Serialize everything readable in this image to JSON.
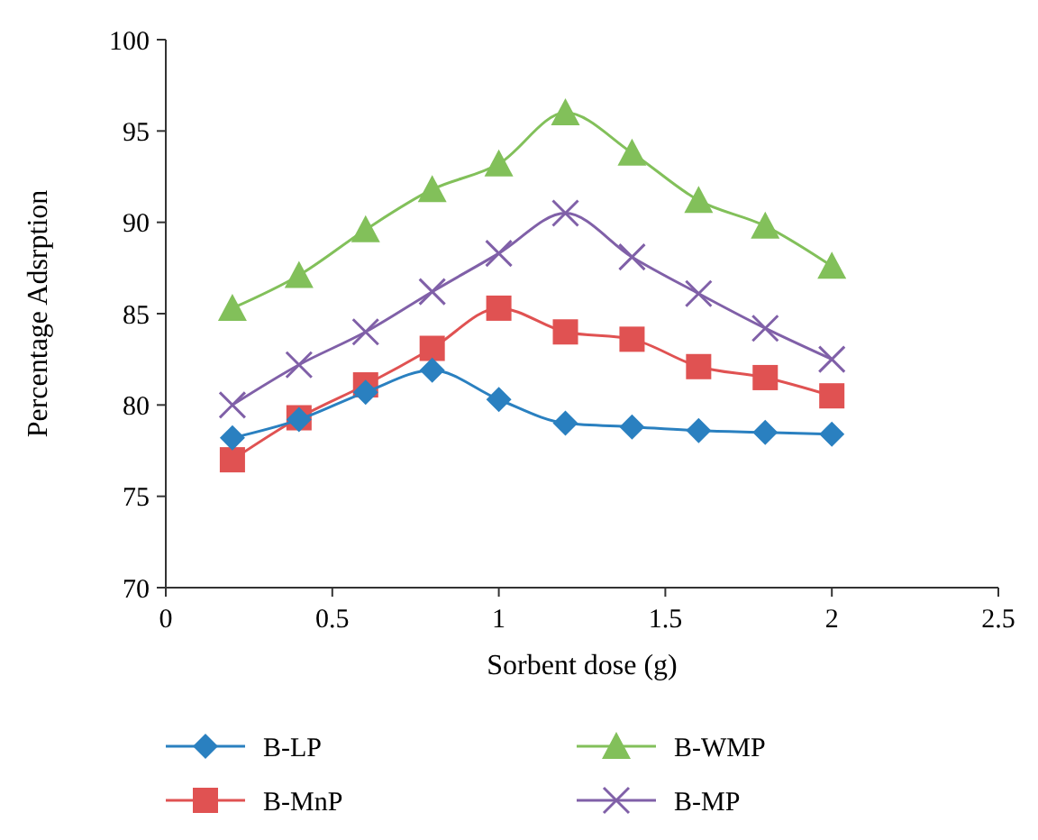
{
  "chart_data": {
    "type": "line",
    "xlabel": "Sorbent dose (g)",
    "ylabel": "Percentage Adsrption",
    "x": [
      0.2,
      0.4,
      0.6,
      0.8,
      1.0,
      1.2,
      1.4,
      1.6,
      1.8,
      2.0
    ],
    "xlim": [
      0,
      2.5
    ],
    "xticks": [
      0,
      0.5,
      1,
      1.5,
      2,
      2.5
    ],
    "ylim": [
      70,
      100
    ],
    "yticks": [
      70,
      75,
      80,
      85,
      90,
      95,
      100
    ],
    "grid": false,
    "legend": "bottom",
    "series": [
      {
        "name": "B-LP",
        "color": "#2a80c0",
        "marker": "diamond",
        "values": [
          78.2,
          79.2,
          80.7,
          81.9,
          80.3,
          79.0,
          78.8,
          78.6,
          78.5,
          78.4
        ]
      },
      {
        "name": "B-MnP",
        "color": "#e05252",
        "marker": "square",
        "values": [
          77.0,
          79.3,
          81.1,
          83.1,
          85.3,
          84.0,
          83.6,
          82.1,
          81.5,
          80.5
        ]
      },
      {
        "name": "B-WMP",
        "color": "#82c05a",
        "marker": "triangle",
        "values": [
          85.3,
          87.1,
          89.6,
          91.8,
          93.2,
          96.0,
          93.8,
          91.2,
          89.8,
          87.6
        ]
      },
      {
        "name": "B-MP",
        "color": "#8060a8",
        "marker": "cross",
        "values": [
          80.0,
          82.2,
          84.0,
          86.2,
          88.3,
          90.5,
          88.1,
          86.1,
          84.2,
          82.5
        ]
      }
    ]
  }
}
